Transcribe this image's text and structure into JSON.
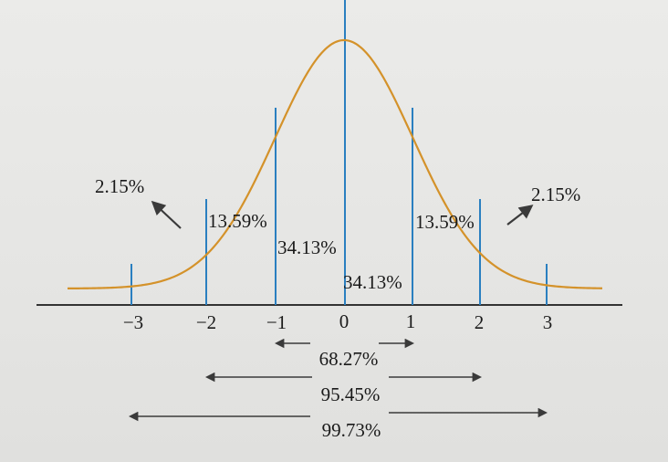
{
  "diagram": {
    "z_ticks": [
      "−3",
      "−2",
      "−1",
      "0",
      "1",
      "2",
      "3"
    ],
    "regions": {
      "tail_left": "2.15%",
      "mid_left": "13.59%",
      "inner_left": "34.13%",
      "inner_right": "34.13%",
      "mid_right": "13.59%",
      "tail_right": "2.15%"
    },
    "ranges": {
      "one_sigma": "68.27%",
      "two_sigma": "95.45%",
      "three_sigma": "99.73%"
    },
    "colors": {
      "curve": "#d4922a",
      "sd_lines": "#2a7fc0",
      "axis": "#333333",
      "arrows": "#3a3a3a"
    }
  }
}
